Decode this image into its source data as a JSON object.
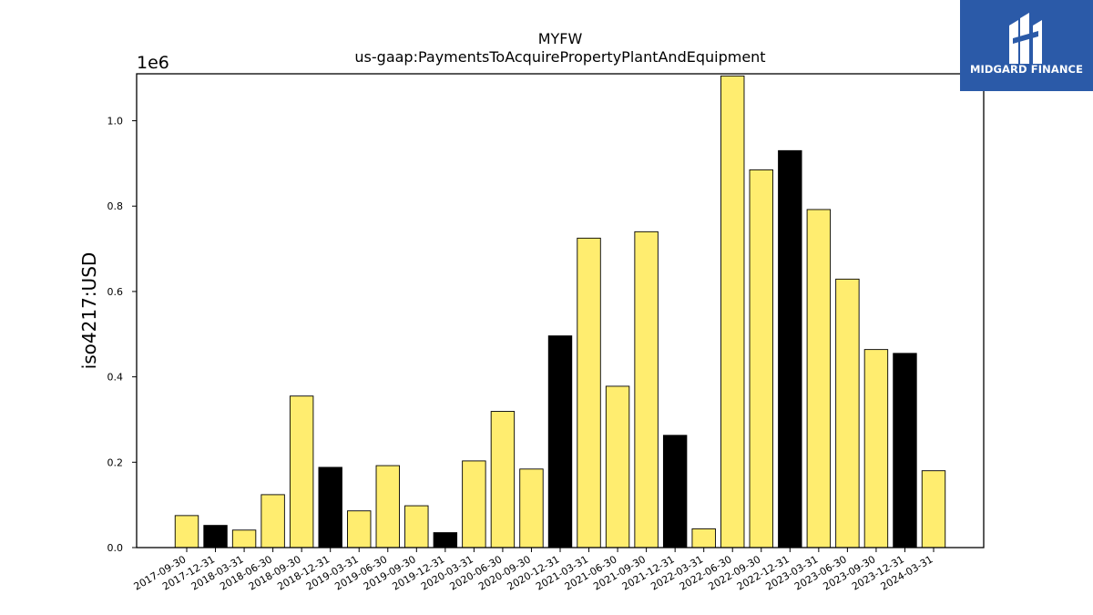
{
  "chart_data": {
    "type": "bar",
    "title": "MYFW",
    "subtitle": "us-gaap:PaymentsToAcquirePropertyPlantAndEquipment",
    "ylabel": "iso4217:USD",
    "xlabel": "",
    "y_offset_label": "1e6",
    "ylim": [
      0,
      1.11
    ],
    "y_ticks": [
      "0.0",
      "0.2",
      "0.4",
      "0.6",
      "0.8",
      "1.0"
    ],
    "grid": false,
    "legend": "none",
    "categories": [
      "2017-09-30",
      "2017-12-31",
      "2018-03-31",
      "2018-06-30",
      "2018-09-30",
      "2018-12-31",
      "2019-03-31",
      "2019-06-30",
      "2019-09-30",
      "2019-12-31",
      "2020-03-31",
      "2020-06-30",
      "2020-09-30",
      "2020-12-31",
      "2021-03-31",
      "2021-06-30",
      "2021-09-30",
      "2021-12-31",
      "2022-03-31",
      "2022-06-30",
      "2022-09-30",
      "2022-12-31",
      "2023-03-31",
      "2023-06-30",
      "2023-09-30",
      "2023-12-31",
      "2024-03-31"
    ],
    "values": [
      0.075,
      0.052,
      0.041,
      0.124,
      0.355,
      0.188,
      0.086,
      0.192,
      0.098,
      0.035,
      0.203,
      0.319,
      0.184,
      0.496,
      0.725,
      0.378,
      0.74,
      0.263,
      0.044,
      1.105,
      0.885,
      0.93,
      0.792,
      0.629,
      0.464,
      0.455,
      0.18
    ],
    "bar_colors": [
      "#ffed6f",
      "#000000",
      "#ffed6f",
      "#ffed6f",
      "#ffed6f",
      "#000000",
      "#ffed6f",
      "#ffed6f",
      "#ffed6f",
      "#000000",
      "#ffed6f",
      "#ffed6f",
      "#ffed6f",
      "#000000",
      "#ffed6f",
      "#ffed6f",
      "#ffed6f",
      "#000000",
      "#ffed6f",
      "#ffed6f",
      "#ffed6f",
      "#000000",
      "#ffed6f",
      "#ffed6f",
      "#ffed6f",
      "#000000",
      "#ffed6f"
    ]
  },
  "logo": {
    "text": "MIDGARD FINANCE",
    "background": "#2b5aa8"
  }
}
